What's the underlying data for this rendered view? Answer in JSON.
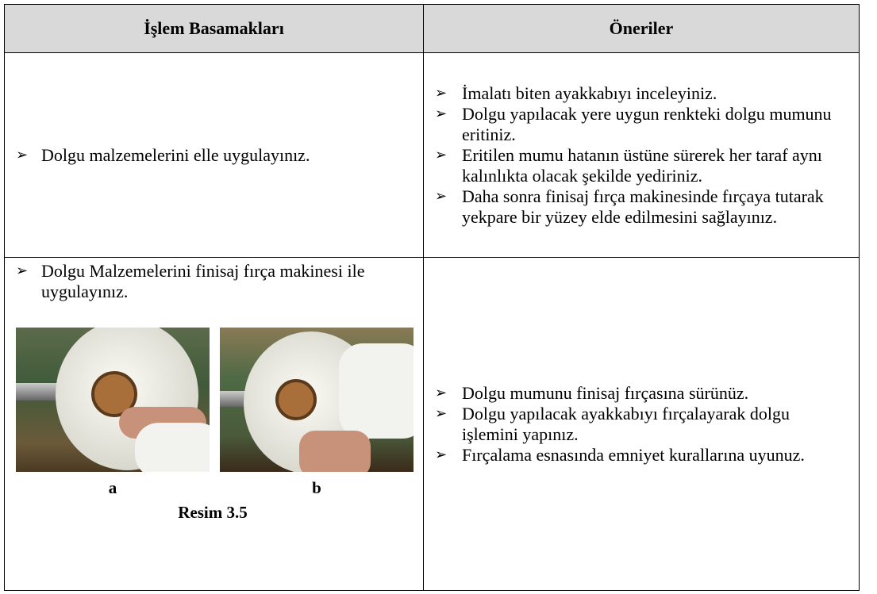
{
  "table": {
    "headers": [
      "İşlem Basamakları",
      "Öneriler"
    ],
    "rows": [
      {
        "steps": [
          "Dolgu malzemelerini elle uygulayınız."
        ],
        "tips": [
          "İmalatı biten ayakkabıyı inceleyiniz.",
          "Dolgu yapılacak yere uygun renkteki dolgu mumunu eritiniz.",
          "Eritilen mumu hatanın üstüne sürerek her taraf aynı kalınlıkta olacak şekilde yediriniz.",
          "Daha sonra finisaj fırça makinesinde fırçaya tutarak yekpare bir yüzey elde edilmesini sağlayınız."
        ]
      },
      {
        "steps": [
          "Dolgu Malzemelerini finisaj fırça makinesi ile uygulayınız."
        ],
        "figure": {
          "labels": [
            "a",
            "b"
          ],
          "caption": "Resim 3.5"
        },
        "tips": [
          "Dolgu mumunu finisaj fırçasına sürünüz.",
          "Dolgu yapılacak ayakkabıyı fırçalayarak dolgu işlemini yapınız.",
          "Fırçalama esnasında emniyet kurallarına uyunuz."
        ]
      }
    ]
  }
}
